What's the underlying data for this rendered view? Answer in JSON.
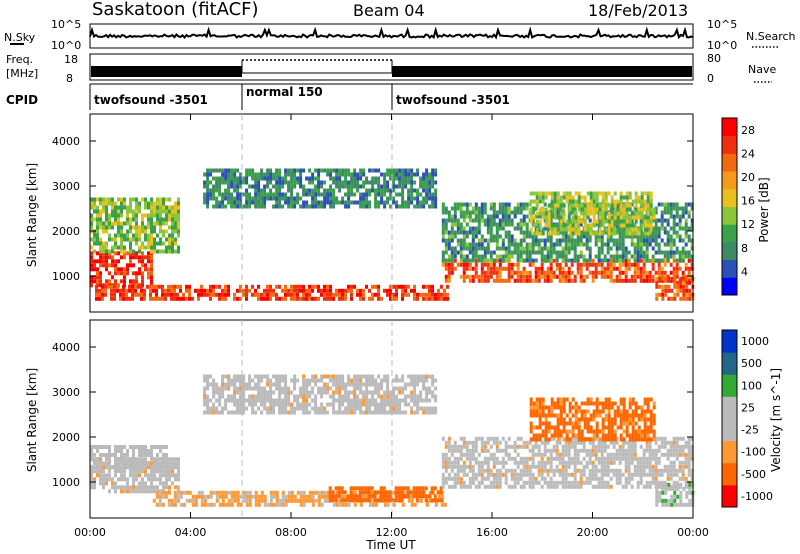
{
  "header": {
    "station": "Saskatoon (fitACF)",
    "beam": "Beam 04",
    "date": "18/Feb/2013"
  },
  "top_panels": {
    "nsky_label": "N.Sky",
    "nsearch_label": "N.Search",
    "noise_ticks_left": [
      "10^5",
      "10^0"
    ],
    "noise_ticks_right": [
      "10^5",
      "10^0"
    ],
    "freq_label_lines": [
      "Freq.",
      "[MHz]"
    ],
    "freq_ticks": [
      "18",
      "8"
    ],
    "nave_label": "Nave",
    "nave_ticks": [
      "80",
      "0"
    ],
    "cpid_label": "CPID",
    "cpid_segments": [
      {
        "name": "twofsound -3501",
        "start_hour": 0,
        "end_hour": 6
      },
      {
        "name": "normal 150",
        "start_hour": 6,
        "end_hour": 12
      },
      {
        "name": "twofsound -3501",
        "start_hour": 12,
        "end_hour": 24
      }
    ]
  },
  "colors": {
    "power_scale": [
      "#0000ff",
      "#2b50b8",
      "#3e8a64",
      "#3aa04a",
      "#8ac63c",
      "#e8c020",
      "#f59a1a",
      "#f26a10",
      "#ee3010",
      "#ff0000"
    ],
    "velocity_scale": [
      "#ff0000",
      "#ff6600",
      "#ff9933",
      "#bbbbbb",
      "#bbbbbb",
      "#33aa33",
      "#226688",
      "#0033cc"
    ]
  },
  "chart_data": [
    {
      "type": "heatmap",
      "name": "Power",
      "ylabel": "Slant Range [km]",
      "yticks": [
        1000,
        2000,
        3000,
        4000
      ],
      "ylim": [
        200,
        4600
      ],
      "xlim": [
        0,
        24
      ],
      "colorbar_label": "Power [dB]",
      "colorbar_ticks": [
        "4",
        "8",
        "12",
        "16",
        "20",
        "24",
        "28"
      ],
      "colorbar_range": [
        0,
        30
      ],
      "regions": [
        {
          "t0": 0.0,
          "t1": 2.5,
          "r0": 750,
          "r1": 1500,
          "value": 26
        },
        {
          "t0": 0.2,
          "t1": 14.2,
          "r0": 450,
          "r1": 800,
          "value": 25
        },
        {
          "t0": 0.0,
          "t1": 3.5,
          "r0": 1500,
          "r1": 2700,
          "value": 13
        },
        {
          "t0": 4.5,
          "t1": 13.8,
          "r0": 2500,
          "r1": 3300,
          "value": 8
        },
        {
          "t0": 14.0,
          "t1": 24.0,
          "r0": 850,
          "r1": 1300,
          "value": 24
        },
        {
          "t0": 14.0,
          "t1": 24.0,
          "r0": 1300,
          "r1": 2600,
          "value": 9
        },
        {
          "t0": 22.5,
          "t1": 24.0,
          "r0": 450,
          "r1": 900,
          "value": 24
        },
        {
          "t0": 17.5,
          "t1": 22.5,
          "r0": 1900,
          "r1": 2800,
          "value": 14
        }
      ]
    },
    {
      "type": "heatmap",
      "name": "Velocity",
      "ylabel": "Slant Range [km]",
      "xlabel": "Time UT",
      "yticks": [
        1000,
        2000,
        3000,
        4000
      ],
      "ylim": [
        200,
        4600
      ],
      "xlim": [
        0,
        24
      ],
      "xticks": [
        "00:00",
        "04:00",
        "08:00",
        "12:00",
        "16:00",
        "20:00",
        "00:00"
      ],
      "colorbar_label": "Velocity [m s^-1]",
      "colorbar_ticks": [
        "1000",
        "500",
        "100",
        "25",
        "-25",
        "-100",
        "-500",
        "-1000"
      ],
      "regions": [
        {
          "t0": 0.0,
          "t1": 3.5,
          "r0": 750,
          "r1": 1500,
          "value": 0
        },
        {
          "t0": 0.0,
          "t1": 3.0,
          "r0": 1200,
          "r1": 1800,
          "value": 60
        },
        {
          "t0": 2.5,
          "t1": 14.2,
          "r0": 450,
          "r1": 750,
          "value": -40
        },
        {
          "t0": 9.5,
          "t1": 14.0,
          "r0": 550,
          "r1": 900,
          "value": -150
        },
        {
          "t0": 4.5,
          "t1": 13.8,
          "r0": 2500,
          "r1": 3300,
          "value": 0
        },
        {
          "t0": 14.0,
          "t1": 24.0,
          "r0": 850,
          "r1": 2000,
          "value": 0
        },
        {
          "t0": 17.5,
          "t1": 22.5,
          "r0": 1900,
          "r1": 2800,
          "value": -120
        },
        {
          "t0": 22.5,
          "t1": 24.0,
          "r0": 450,
          "r1": 900,
          "value": 80
        }
      ]
    }
  ]
}
